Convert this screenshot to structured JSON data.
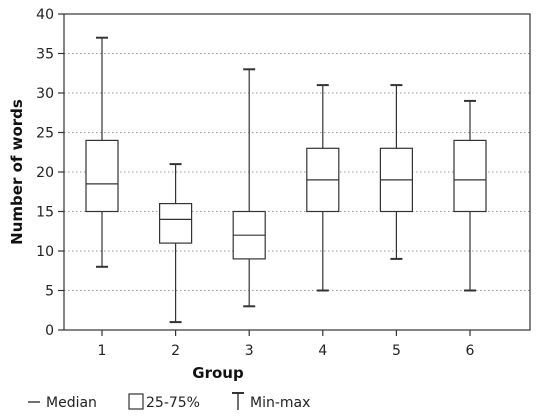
{
  "chart_data": {
    "type": "box",
    "xlabel": "Group",
    "ylabel": "Number of words",
    "ylim": [
      0,
      40
    ],
    "yticks": [
      0,
      5,
      10,
      15,
      20,
      25,
      30,
      35,
      40
    ],
    "grid": "horizontal dotted",
    "categories": [
      "1",
      "2",
      "3",
      "4",
      "5",
      "6"
    ],
    "boxes": [
      {
        "group": "1",
        "min": 8,
        "q1": 15,
        "median": 18.5,
        "q3": 24,
        "max": 37
      },
      {
        "group": "2",
        "min": 1,
        "q1": 11,
        "median": 14,
        "q3": 16,
        "max": 21
      },
      {
        "group": "3",
        "min": 3,
        "q1": 9,
        "median": 12,
        "q3": 15,
        "max": 33
      },
      {
        "group": "4",
        "min": 5,
        "q1": 15,
        "median": 19,
        "q3": 23,
        "max": 31
      },
      {
        "group": "5",
        "min": 9,
        "q1": 15,
        "median": 19,
        "q3": 23,
        "max": 31
      },
      {
        "group": "6",
        "min": 5,
        "q1": 15,
        "median": 19,
        "q3": 24,
        "max": 29
      }
    ],
    "legend": {
      "position": "bottom-left",
      "items": [
        {
          "symbol": "median-line",
          "label": "Median"
        },
        {
          "symbol": "box",
          "label": "25-75%"
        },
        {
          "symbol": "whisker",
          "label": "Min-max"
        }
      ]
    },
    "colors": {
      "stroke": "#333333",
      "grid": "#999999",
      "box_fill": "#ffffff"
    }
  }
}
